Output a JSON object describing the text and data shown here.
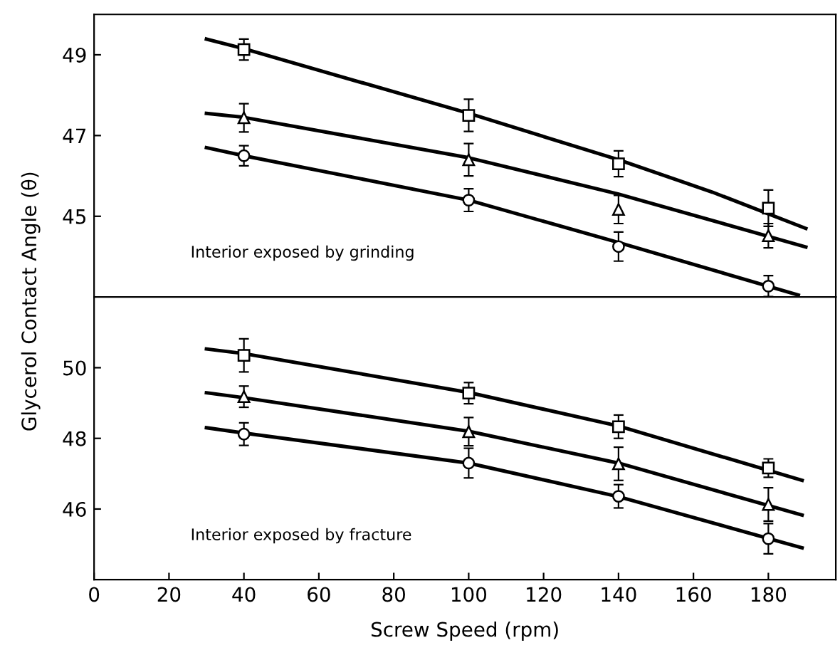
{
  "chart_data": [
    {
      "type": "scatter",
      "ylabel": "Glycerol Contact Angle (θ)",
      "xlim": [
        0,
        198
      ],
      "ylim": [
        43,
        50
      ],
      "yticks": [
        45,
        47,
        49
      ],
      "tick_labels": "y",
      "grid": false,
      "legend": false,
      "annotations": [
        "Interior exposed by grinding"
      ],
      "series": [
        {
          "marker": "square",
          "color": "#000000",
          "x": [
            40,
            100,
            140,
            180
          ],
          "values": [
            49.13,
            47.5,
            46.3,
            45.2
          ],
          "errors": [
            0.26,
            0.4,
            0.32,
            0.45
          ]
        },
        {
          "marker": "triangle",
          "color": "#000000",
          "x": [
            40,
            100,
            140,
            180
          ],
          "values": [
            47.44,
            46.4,
            45.17,
            44.52
          ],
          "errors": [
            0.35,
            0.4,
            0.35,
            0.3
          ]
        },
        {
          "marker": "circle",
          "color": "#000000",
          "x": [
            40,
            100,
            140,
            180
          ],
          "values": [
            46.5,
            45.4,
            44.25,
            43.27
          ],
          "errors": [
            0.25,
            0.28,
            0.36,
            0.26
          ]
        },
        {
          "type": "line",
          "marker": "none",
          "line_style": "solid",
          "color": "#000000",
          "x": [
            30,
            40,
            100,
            140,
            165,
            190
          ],
          "values": [
            49.39,
            49.15,
            47.55,
            46.4,
            45.6,
            44.7
          ]
        },
        {
          "type": "line",
          "marker": "none",
          "line_style": "solid",
          "color": "#000000",
          "x": [
            30,
            40,
            100,
            140,
            190
          ],
          "values": [
            47.55,
            47.45,
            46.45,
            45.55,
            44.24
          ]
        },
        {
          "type": "line",
          "marker": "none",
          "line_style": "solid",
          "color": "#000000",
          "x": [
            30,
            40,
            100,
            140,
            188
          ],
          "values": [
            46.7,
            46.5,
            45.4,
            44.35,
            43.05
          ]
        }
      ]
    },
    {
      "type": "scatter",
      "xlabel": "Screw Speed (rpm)",
      "xlim": [
        0,
        198
      ],
      "xticks": [
        0,
        20,
        40,
        60,
        80,
        100,
        120,
        140,
        160,
        180
      ],
      "ylim": [
        44,
        52
      ],
      "yticks": [
        46,
        48,
        50
      ],
      "grid": false,
      "legend": false,
      "annotations": [
        "Interior exposed by fracture"
      ],
      "series": [
        {
          "marker": "square",
          "color": "#000000",
          "x": [
            40,
            100,
            140,
            180
          ],
          "values": [
            50.35,
            49.28,
            48.33,
            47.16
          ],
          "errors": [
            0.47,
            0.3,
            0.33,
            0.26
          ]
        },
        {
          "marker": "triangle",
          "color": "#000000",
          "x": [
            40,
            100,
            140,
            180
          ],
          "values": [
            49.18,
            48.19,
            47.28,
            46.13
          ],
          "errors": [
            0.3,
            0.4,
            0.47,
            0.47
          ]
        },
        {
          "marker": "circle",
          "color": "#000000",
          "x": [
            40,
            100,
            140,
            180
          ],
          "values": [
            48.12,
            47.3,
            46.36,
            45.16
          ],
          "errors": [
            0.32,
            0.42,
            0.33,
            0.43
          ]
        },
        {
          "type": "line",
          "marker": "none",
          "line_style": "solid",
          "color": "#000000",
          "x": [
            30,
            40,
            100,
            140,
            189
          ],
          "values": [
            50.53,
            50.4,
            49.3,
            48.35,
            46.81
          ]
        },
        {
          "type": "line",
          "marker": "none",
          "line_style": "solid",
          "color": "#000000",
          "x": [
            30,
            40,
            100,
            140,
            189
          ],
          "values": [
            49.29,
            49.15,
            48.2,
            47.3,
            45.83
          ]
        },
        {
          "type": "line",
          "marker": "none",
          "line_style": "solid",
          "color": "#000000",
          "x": [
            30,
            40,
            100,
            140,
            189
          ],
          "values": [
            48.3,
            48.15,
            47.3,
            46.35,
            44.9
          ]
        }
      ]
    }
  ]
}
